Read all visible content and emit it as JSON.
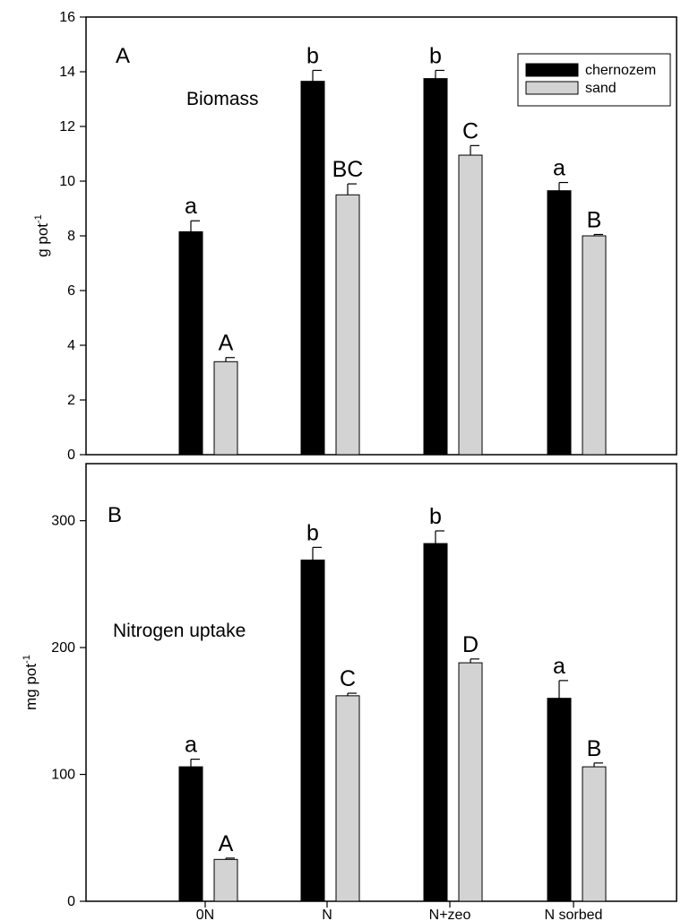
{
  "chart_data": [
    {
      "type": "bar",
      "panel_letter": "A",
      "title": "Biomass",
      "ylabel": "g pot",
      "ylabel_sup": "-1",
      "ylim": [
        0,
        16
      ],
      "yticks": [
        0,
        2,
        4,
        6,
        8,
        10,
        12,
        14,
        16
      ],
      "categories": [
        "0N",
        "N",
        "N+zeo",
        "N sorbed"
      ],
      "series": [
        {
          "name": "chernozem",
          "color": "#000000",
          "values": [
            8.15,
            13.65,
            13.75,
            9.65
          ],
          "errors": [
            0.4,
            0.4,
            0.3,
            0.3
          ],
          "labels": [
            "a",
            "b",
            "b",
            "a"
          ]
        },
        {
          "name": "sand",
          "color": "#d3d3d3",
          "values": [
            3.4,
            9.5,
            10.95,
            8.0
          ],
          "errors": [
            0.15,
            0.4,
            0.35,
            0.05
          ],
          "labels": [
            "A",
            "BC",
            "C",
            "B"
          ]
        }
      ],
      "legend": {
        "position": "top-right",
        "entries": [
          "chernozem",
          "sand"
        ]
      },
      "grid": false
    },
    {
      "type": "bar",
      "panel_letter": "B",
      "title": "Nitrogen uptake",
      "ylabel": "mg pot",
      "ylabel_sup": "-1",
      "ylim": [
        0,
        345
      ],
      "yticks": [
        0,
        100,
        200,
        300
      ],
      "categories": [
        "0N",
        "N",
        "N+zeo",
        "N sorbed"
      ],
      "series": [
        {
          "name": "chernozem",
          "color": "#000000",
          "values": [
            106,
            269,
            282,
            160
          ],
          "errors": [
            6,
            10,
            10,
            14
          ],
          "labels": [
            "a",
            "b",
            "b",
            "a"
          ]
        },
        {
          "name": "sand",
          "color": "#d3d3d3",
          "values": [
            33,
            162,
            188,
            106
          ],
          "errors": [
            1,
            2,
            3,
            3
          ],
          "labels": [
            "A",
            "C",
            "D",
            "B"
          ]
        }
      ],
      "grid": false
    }
  ]
}
